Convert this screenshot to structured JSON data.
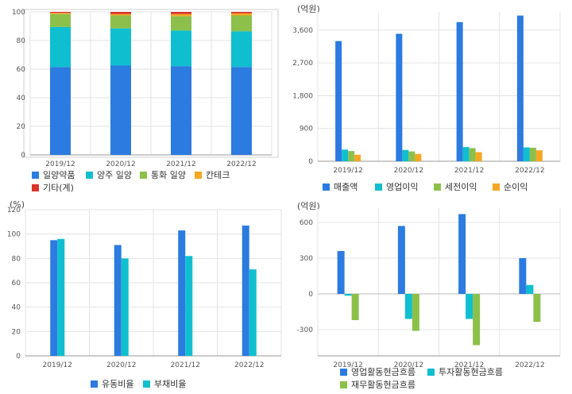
{
  "colors": {
    "blue": "#2b7be0",
    "cyan": "#0fbfcf",
    "green": "#8cc04a",
    "orange": "#f5a623",
    "red": "#d8342a",
    "grid": "#e3e3e3",
    "axis": "#999999"
  },
  "chart_data": [
    {
      "type": "bar",
      "stacked": true,
      "categories": [
        "2019/12",
        "2020/12",
        "2021/12",
        "2022/12"
      ],
      "ylim": [
        0,
        100
      ],
      "yticks": [
        0,
        20,
        40,
        60,
        80,
        100
      ],
      "unit": "",
      "series": [
        {
          "name": "일양약품",
          "color": "#2b7be0",
          "values": [
            61.5,
            62.5,
            62,
            61.5
          ]
        },
        {
          "name": "양주 일양",
          "color": "#0fbfcf",
          "values": [
            28,
            26,
            25,
            25
          ]
        },
        {
          "name": "통화 일양",
          "color": "#8cc04a",
          "values": [
            9,
            9,
            10,
            11
          ]
        },
        {
          "name": "칸테크",
          "color": "#f5a623",
          "values": [
            0.8,
            1,
            1.5,
            1.5
          ]
        },
        {
          "name": "기타(계)",
          "color": "#d8342a",
          "values": [
            0.7,
            1.5,
            1.5,
            1
          ]
        }
      ]
    },
    {
      "type": "bar",
      "categories": [
        "2019/12",
        "2020/12",
        "2021/12",
        "2022/12"
      ],
      "ylim": [
        0,
        4100
      ],
      "yticks": [
        0,
        900,
        1800,
        2700,
        3600
      ],
      "yticklabels": [
        "0",
        "900",
        "1,800",
        "2,700",
        "3,600"
      ],
      "unit": "(억원)",
      "series": [
        {
          "name": "매출액",
          "color": "#2b7be0",
          "values": [
            3300,
            3500,
            3820,
            4000
          ]
        },
        {
          "name": "영업이익",
          "color": "#0fbfcf",
          "values": [
            320,
            310,
            390,
            380
          ]
        },
        {
          "name": "세전이익",
          "color": "#8cc04a",
          "values": [
            280,
            270,
            360,
            370
          ]
        },
        {
          "name": "순이익",
          "color": "#f5a623",
          "values": [
            180,
            200,
            250,
            300
          ]
        }
      ]
    },
    {
      "type": "bar",
      "categories": [
        "2019/12",
        "2020/12",
        "2021/12",
        "2022/12"
      ],
      "ylim": [
        0,
        120
      ],
      "yticks": [
        0,
        20,
        40,
        60,
        80,
        100,
        120
      ],
      "unit": "(%)",
      "series": [
        {
          "name": "유동비율",
          "color": "#2b7be0",
          "values": [
            95,
            91,
            103,
            107
          ]
        },
        {
          "name": "부채비율",
          "color": "#0fbfcf",
          "values": [
            96,
            80,
            82,
            71
          ]
        }
      ]
    },
    {
      "type": "bar",
      "categories": [
        "2019/12",
        "2020/12",
        "2021/12",
        "2022/12"
      ],
      "ylim": [
        -520,
        720
      ],
      "yticks": [
        -300,
        0,
        300,
        600
      ],
      "unit": "(억원)",
      "series": [
        {
          "name": "영업활동현금흐름",
          "color": "#2b7be0",
          "values": [
            360,
            570,
            670,
            300
          ]
        },
        {
          "name": "투자활동현금흐름",
          "color": "#0fbfcf",
          "values": [
            -15,
            -210,
            -210,
            75
          ]
        },
        {
          "name": "재무활동현금흐름",
          "color": "#8cc04a",
          "values": [
            -220,
            -310,
            -430,
            -235
          ]
        }
      ]
    }
  ]
}
